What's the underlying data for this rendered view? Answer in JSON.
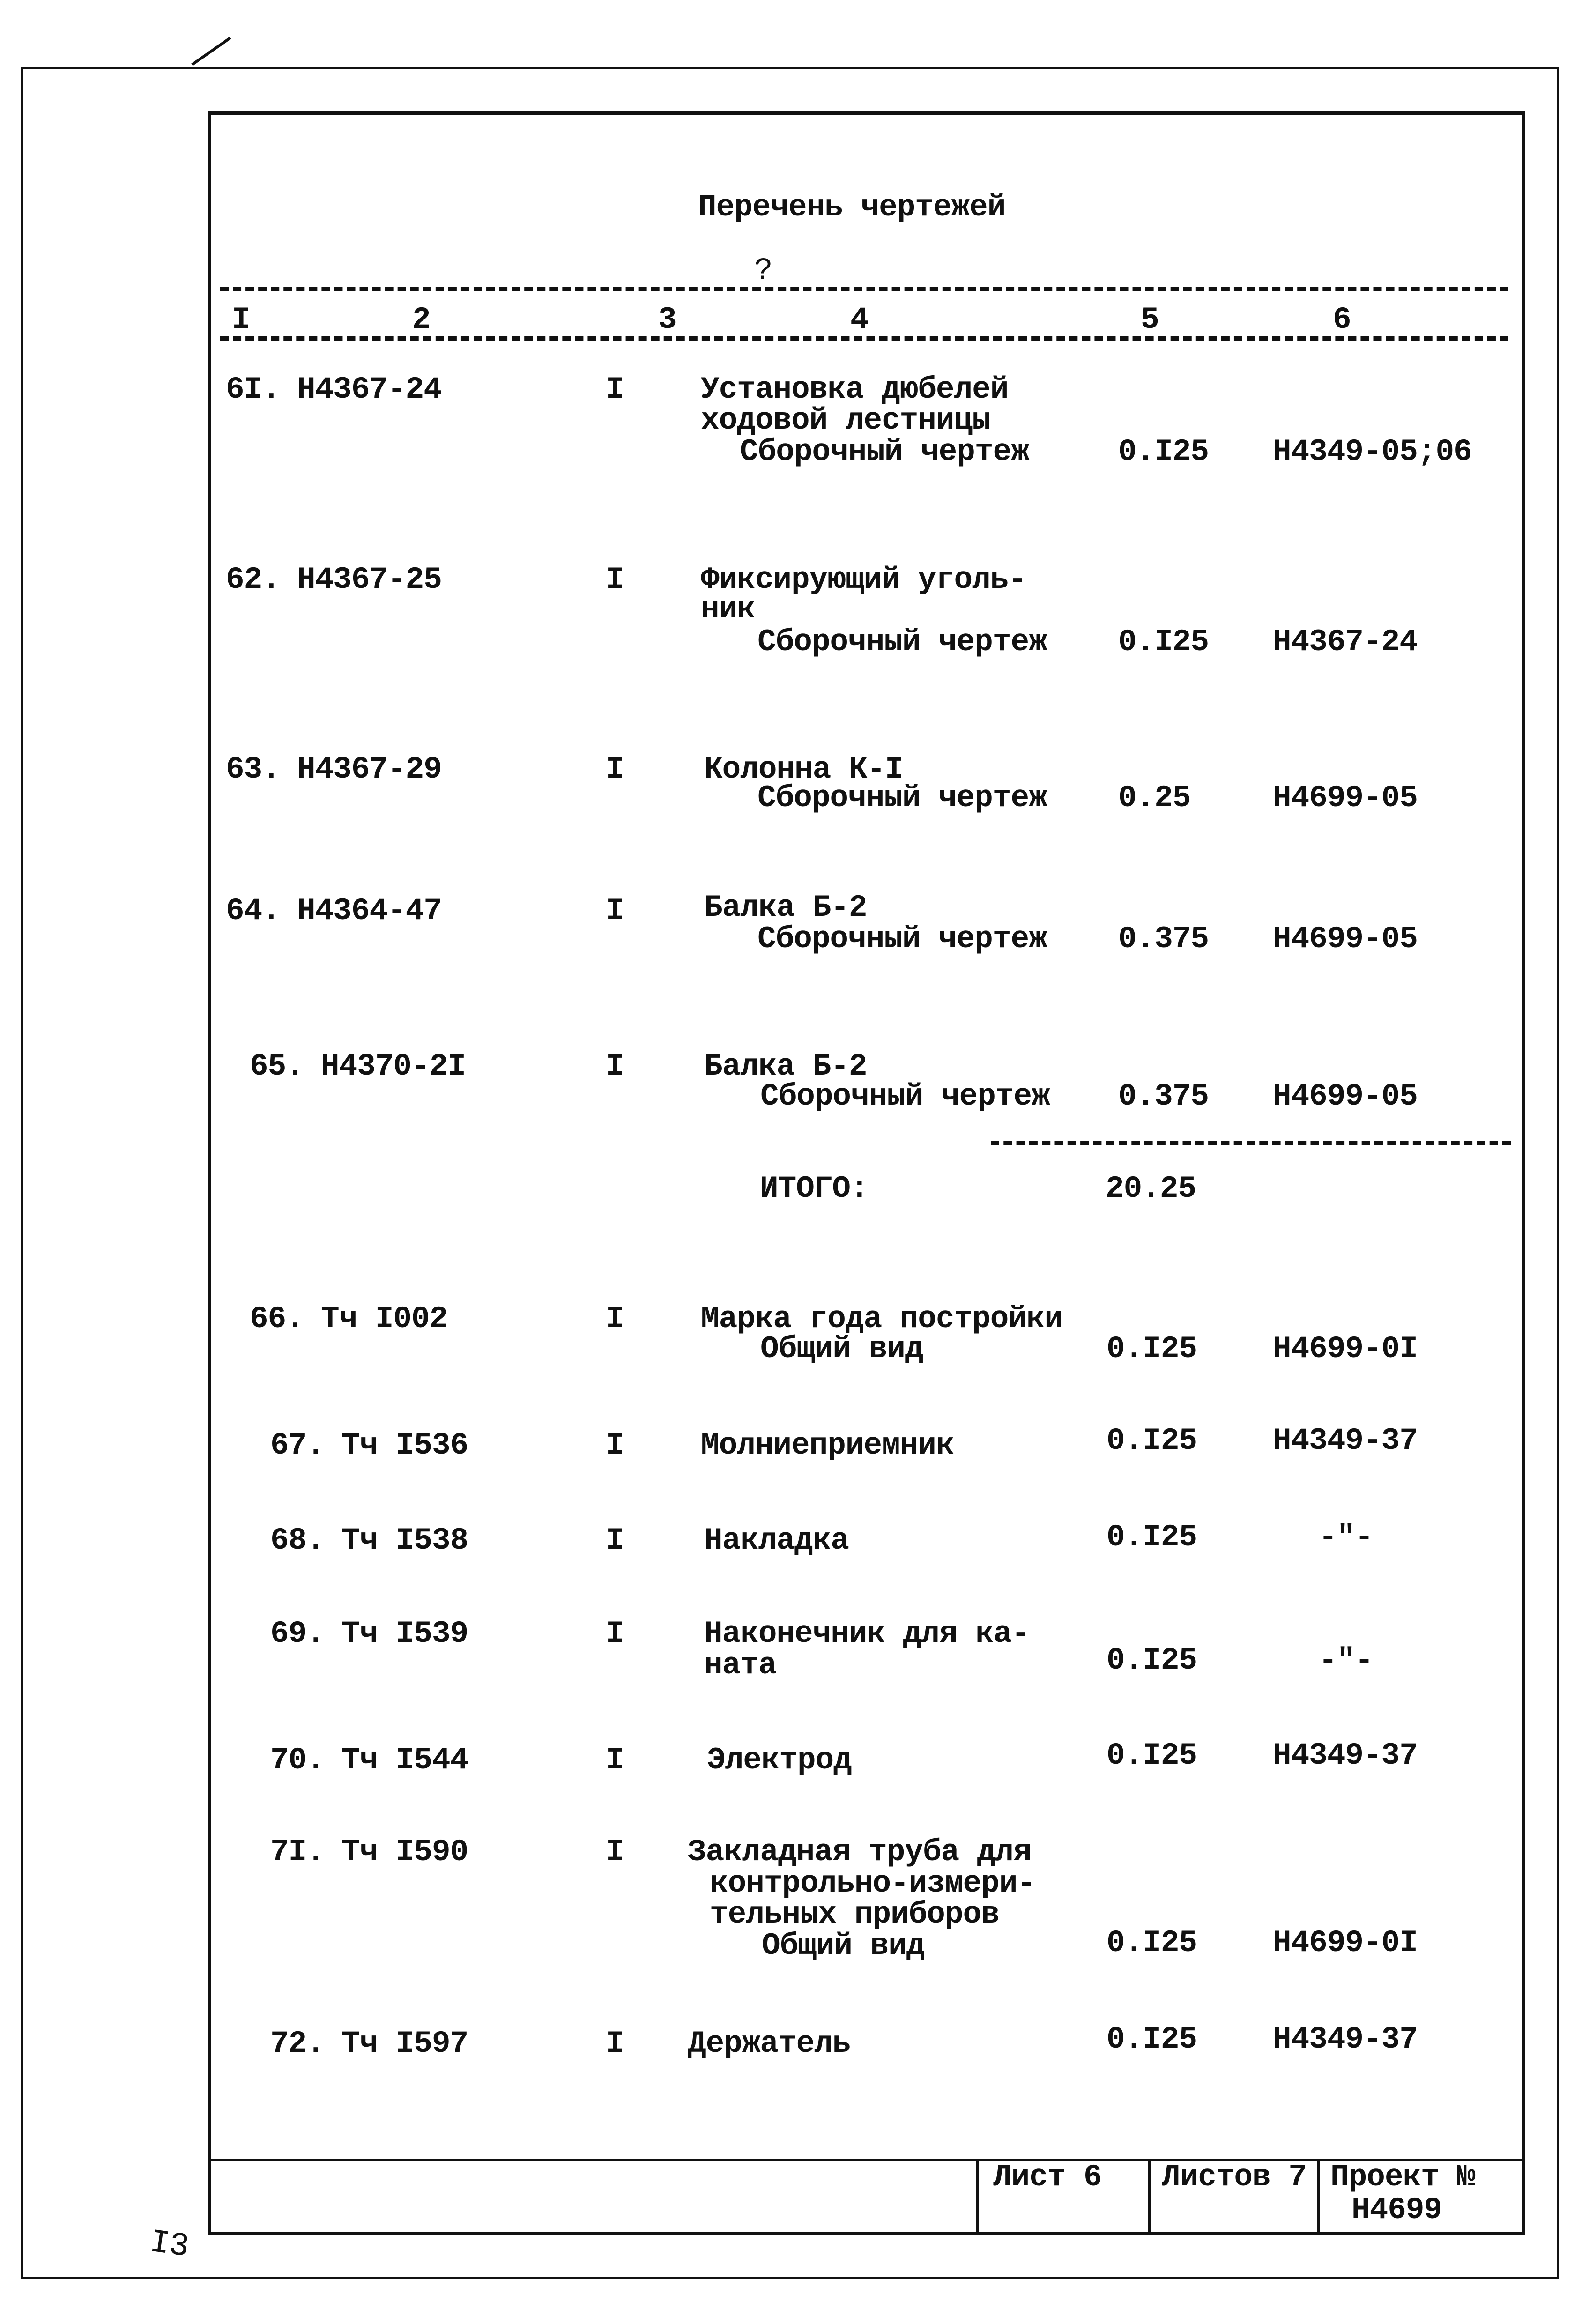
{
  "title": "Перечень чертежей",
  "question_mark": "?",
  "column_headers": [
    "I",
    "2",
    "3",
    "4",
    "5",
    "6"
  ],
  "rows": [
    {
      "num": "6I.",
      "code": "Н4367-24",
      "qty": "I",
      "desc": [
        "Установка дюбелей",
        "ходовой лестницы",
        "Сборочный чертеж"
      ],
      "sheets": "0.I25",
      "ref": "Н4349-05;06"
    },
    {
      "num": "62.",
      "code": "Н4367-25",
      "qty": "I",
      "desc": [
        "Фиксирующий уголь-",
        "ник",
        "Сборочный чертеж"
      ],
      "sheets": "0.I25",
      "ref": "Н4367-24"
    },
    {
      "num": "63.",
      "code": "Н4367-29",
      "qty": "I",
      "desc": [
        "Колонна К-I",
        "Сборочный чертеж"
      ],
      "sheets": "0.25",
      "ref": "Н4699-05"
    },
    {
      "num": "64.",
      "code": "Н4364-47",
      "qty": "I",
      "desc": [
        "Балка Б-2",
        "Сборочный чертеж"
      ],
      "sheets": "0.375",
      "ref": "Н4699-05"
    },
    {
      "num": "65.",
      "code": "Н4370-2I",
      "qty": "I",
      "desc": [
        "Балка Б-2",
        "Сборочный чертеж"
      ],
      "sheets": "0.375",
      "ref": "Н4699-05"
    },
    {
      "num": "66.",
      "code": "Тч I002",
      "qty": "I",
      "desc": [
        "Марка года постройки",
        "Общий вид"
      ],
      "sheets": "0.I25",
      "ref": "Н4699-0I"
    },
    {
      "num": "67.",
      "code": "Тч I536",
      "qty": "I",
      "desc": [
        "Молниеприемник"
      ],
      "sheets": "0.I25",
      "ref": "Н4349-37"
    },
    {
      "num": "68.",
      "code": "Тч I538",
      "qty": "I",
      "desc": [
        "Накладка"
      ],
      "sheets": "0.I25",
      "ref": "-\"-"
    },
    {
      "num": "69.",
      "code": "Тч I539",
      "qty": "I",
      "desc": [
        "Наконечник для ка-",
        "ната"
      ],
      "sheets": "0.I25",
      "ref": "-\"-"
    },
    {
      "num": "70.",
      "code": "Тч I544",
      "qty": "I",
      "desc": [
        "Электрод"
      ],
      "sheets": "0.I25",
      "ref": "Н4349-37"
    },
    {
      "num": "7I.",
      "code": "Тч I590",
      "qty": "I",
      "desc": [
        "Закладная труба для",
        "контрольно-измери-",
        "тельных приборов",
        "Общий вид"
      ],
      "sheets": "0.I25",
      "ref": "Н4699-0I"
    },
    {
      "num": "72.",
      "code": "Тч I597",
      "qty": "I",
      "desc": [
        "Держатель"
      ],
      "sheets": "0.I25",
      "ref": "Н4349-37"
    }
  ],
  "total": {
    "label": "ИТОГО:",
    "value": "20.25"
  },
  "footer": {
    "sheet": "Лист 6",
    "sheets_total": "Листов 7",
    "project_label": "Проект №",
    "project_number": "Н4699"
  },
  "margin_note": "I3"
}
